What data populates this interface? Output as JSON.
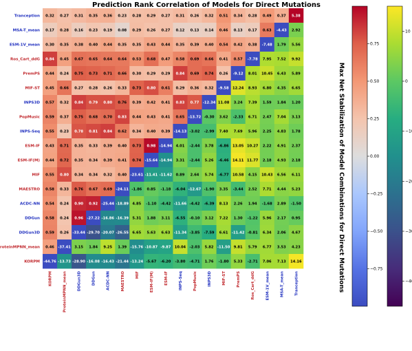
{
  "chart_data": {
    "type": "heatmap",
    "title": "Prediction Rank Correlation of Models for Direct Mutations",
    "side_label": "Max Net Stabilization of Model Combinations for Direct Mutations",
    "models": [
      {
        "name": "Tranception",
        "group": "blue"
      },
      {
        "name": "MSA-T_mean",
        "group": "blue"
      },
      {
        "name": "ESM-1V_mean",
        "group": "blue"
      },
      {
        "name": "Ros_Cart_ddG",
        "group": "red"
      },
      {
        "name": "PremPS",
        "group": "red"
      },
      {
        "name": "MIF-ST",
        "group": "red"
      },
      {
        "name": "INPS3D",
        "group": "blue"
      },
      {
        "name": "PopMusic",
        "group": "red"
      },
      {
        "name": "INPS-Seq",
        "group": "blue"
      },
      {
        "name": "ESM-IF",
        "group": "red"
      },
      {
        "name": "ESM-IF(M)",
        "group": "red"
      },
      {
        "name": "MIF",
        "group": "red"
      },
      {
        "name": "MAESTRO",
        "group": "red"
      },
      {
        "name": "ACDC-NN",
        "group": "blue"
      },
      {
        "name": "DDGun",
        "group": "blue"
      },
      {
        "name": "DDGun3D",
        "group": "blue"
      },
      {
        "name": "ProteinMPNN_mean",
        "group": "red"
      },
      {
        "name": "KORPM",
        "group": "red"
      }
    ],
    "x_labels": [
      "KORPM",
      "ProteinMPNN_mean",
      "DDGun3D",
      "DDGun",
      "ACDC-NN",
      "MAESTRO",
      "MIF",
      "ESM-IF(M)",
      "ESM-IF",
      "INPS-Seq",
      "PopMusic",
      "INPS3D",
      "MIF-ST",
      "PremPS",
      "Ros_Cart_ddG",
      "ESM-1V_mean",
      "MSA-T_mean",
      "Tranception"
    ],
    "values": [
      [
        "0.32",
        "0.27",
        "0.31",
        "0.35",
        "0.36",
        "0.23",
        "0.28",
        "0.29",
        "0.27",
        "0.31",
        "0.26",
        "0.32",
        "0.51",
        "0.34",
        "0.28",
        "0.49",
        "0.37",
        "5.38"
      ],
      [
        "0.17",
        "0.28",
        "0.16",
        "0.23",
        "0.19",
        "0.08",
        "0.29",
        "0.26",
        "0.27",
        "0.12",
        "0.13",
        "0.14",
        "0.46",
        "0.13",
        "0.17",
        "0.63",
        "-4.43",
        "2.92"
      ],
      [
        "0.30",
        "0.35",
        "0.38",
        "0.40",
        "0.44",
        "0.35",
        "0.35",
        "0.43",
        "0.44",
        "0.35",
        "0.39",
        "0.40",
        "0.54",
        "0.42",
        "0.38",
        "-7.48",
        "1.79",
        "5.56"
      ],
      [
        "0.84",
        "0.45",
        "0.67",
        "0.65",
        "0.64",
        "0.64",
        "0.53",
        "0.68",
        "0.47",
        "0.58",
        "0.69",
        "0.66",
        "0.41",
        "0.57",
        "-7.78",
        "7.95",
        "7.52",
        "9.92"
      ],
      [
        "0.44",
        "0.24",
        "0.75",
        "0.73",
        "0.71",
        "0.66",
        "0.30",
        "0.29",
        "0.29",
        "0.84",
        "0.69",
        "0.74",
        "0.26",
        "-9.12",
        "8.01",
        "10.45",
        "6.43",
        "5.89"
      ],
      [
        "0.45",
        "0.66",
        "0.27",
        "0.28",
        "0.26",
        "0.33",
        "0.73",
        "0.80",
        "0.61",
        "0.29",
        "0.36",
        "0.32",
        "-9.58",
        "12.24",
        "8.93",
        "6.80",
        "4.35",
        "6.65"
      ],
      [
        "0.57",
        "0.32",
        "0.84",
        "0.79",
        "0.80",
        "0.76",
        "0.39",
        "0.42",
        "0.41",
        "0.83",
        "0.77",
        "-12.34",
        "11.08",
        "3.24",
        "7.39",
        "1.59",
        "1.84",
        "1.20"
      ],
      [
        "0.59",
        "0.37",
        "0.75",
        "0.68",
        "0.70",
        "0.83",
        "0.44",
        "0.43",
        "0.41",
        "0.65",
        "-13.72",
        "-0.30",
        "3.62",
        "-2.33",
        "6.71",
        "2.47",
        "7.04",
        "3.13"
      ],
      [
        "0.55",
        "0.23",
        "0.78",
        "0.81",
        "0.84",
        "0.62",
        "0.34",
        "0.40",
        "0.39",
        "-14.13",
        "-3.02",
        "-2.99",
        "7.40",
        "7.69",
        "5.96",
        "2.25",
        "4.83",
        "1.78"
      ],
      [
        "0.43",
        "0.71",
        "0.35",
        "0.33",
        "0.39",
        "0.40",
        "0.73",
        "0.98",
        "-14.94",
        "4.01",
        "-2.44",
        "3.78",
        "-6.86",
        "13.05",
        "10.27",
        "2.22",
        "4.91",
        "2.37"
      ],
      [
        "0.44",
        "0.72",
        "0.35",
        "0.34",
        "0.39",
        "0.41",
        "0.74",
        "-15.64",
        "-14.94",
        "3.31",
        "-2.44",
        "5.26",
        "-6.46",
        "14.11",
        "11.77",
        "2.18",
        "4.93",
        "2.18"
      ],
      [
        "0.55",
        "0.80",
        "0.34",
        "0.34",
        "0.32",
        "0.40",
        "-23.61",
        "-11.41",
        "-11.62",
        "0.89",
        "2.64",
        "5.74",
        "-6.77",
        "10.58",
        "4.15",
        "10.43",
        "6.56",
        "6.11"
      ],
      [
        "0.58",
        "0.33",
        "0.76",
        "0.67",
        "0.69",
        "-24.11",
        "-1.86",
        "0.85",
        "-1.18",
        "-6.04",
        "-12.67",
        "-1.90",
        "3.35",
        "-3.44",
        "2.52",
        "7.71",
        "4.44",
        "5.23"
      ],
      [
        "0.54",
        "0.24",
        "0.90",
        "0.92",
        "-25.44",
        "-18.89",
        "4.85",
        "-1.10",
        "-4.42",
        "-11.66",
        "-4.42",
        "-6.39",
        "8.13",
        "2.26",
        "1.94",
        "-1.68",
        "2.89",
        "-1.50"
      ],
      [
        "0.58",
        "0.24",
        "0.96",
        "-27.22",
        "-16.86",
        "-16.39",
        "5.31",
        "1.88",
        "3.11",
        "-6.55",
        "-0.10",
        "3.12",
        "7.22",
        "1.30",
        "-1.22",
        "5.96",
        "2.17",
        "0.95"
      ],
      [
        "0.59",
        "0.26",
        "-33.44",
        "-29.70",
        "-20.07",
        "-26.55",
        "6.65",
        "5.63",
        "6.63",
        "-11.34",
        "-3.85",
        "-7.59",
        "6.61",
        "-11.42",
        "-0.81",
        "6.34",
        "2.06",
        "4.67"
      ],
      [
        "0.46",
        "-37.41",
        "3.15",
        "1.84",
        "9.25",
        "1.39",
        "-15.76",
        "-10.87",
        "-9.87",
        "10.04",
        "-2.03",
        "5.82",
        "-11.50",
        "9.81",
        "5.79",
        "6.77",
        "3.53",
        "4.23"
      ],
      [
        "-44.76",
        "-13.73",
        "-28.90",
        "-16.08",
        "-16.43",
        "-21.44",
        "-13.24",
        "-5.67",
        "-6.20",
        "-3.80",
        "-4.71",
        "1.76",
        "-1.80",
        "5.33",
        "-2.71",
        "7.06",
        "7.13",
        "14.16"
      ]
    ],
    "corr_colorbar": {
      "range": [
        -1,
        1
      ],
      "ticks": [
        "0.75",
        "0.50",
        "0.25",
        "0.00",
        "−0.25",
        "−0.50",
        "−0.75"
      ]
    },
    "stab_colorbar": {
      "range": [
        -45,
        15
      ],
      "ticks": [
        "10",
        "0",
        "−10",
        "−20",
        "−30",
        "−40"
      ]
    },
    "colors": {
      "group_red": "#c0262b",
      "group_blue": "#1f2fbf"
    }
  }
}
